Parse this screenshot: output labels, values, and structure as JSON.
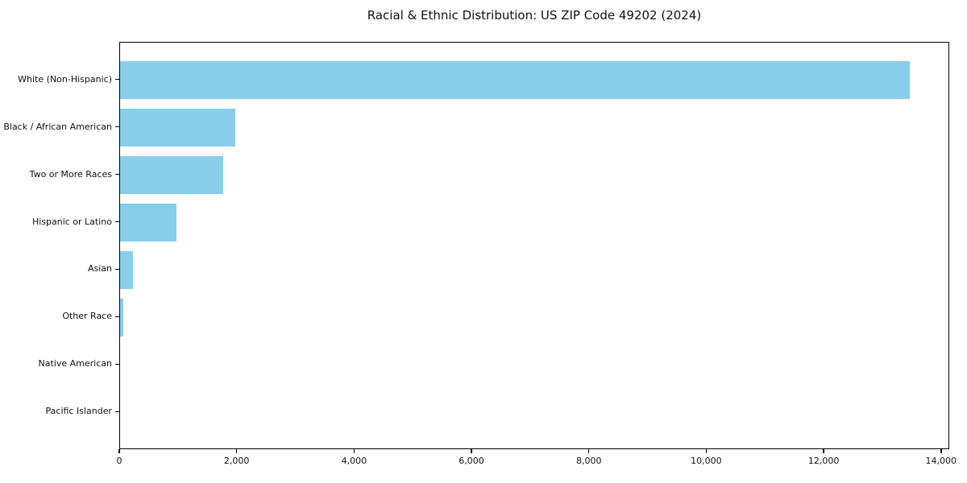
{
  "chart_data": {
    "type": "bar",
    "orientation": "horizontal",
    "title": "Racial & Ethnic Distribution: US ZIP Code 49202 (2024)",
    "categories": [
      "White (Non-Hispanic)",
      "Black / African American",
      "Two or More Races",
      "Hispanic or Latino",
      "Asian",
      "Other Race",
      "Native American",
      "Pacific Islander"
    ],
    "values": [
      13470,
      1980,
      1780,
      975,
      240,
      70,
      15,
      5
    ],
    "xlabel": "",
    "ylabel": "",
    "xlim": [
      0,
      14140
    ],
    "xticks": [
      {
        "value": 0,
        "label": "0"
      },
      {
        "value": 2000,
        "label": "2,000"
      },
      {
        "value": 4000,
        "label": "4,000"
      },
      {
        "value": 6000,
        "label": "6,000"
      },
      {
        "value": 8000,
        "label": "8,000"
      },
      {
        "value": 10000,
        "label": "10,000"
      },
      {
        "value": 12000,
        "label": "12,000"
      },
      {
        "value": 14000,
        "label": "14,000"
      }
    ],
    "grid": false,
    "legend": null,
    "bar_color": "#87CEEB",
    "axis_color": "#000000",
    "text_color": "#111111",
    "background_color": "#ffffff"
  }
}
